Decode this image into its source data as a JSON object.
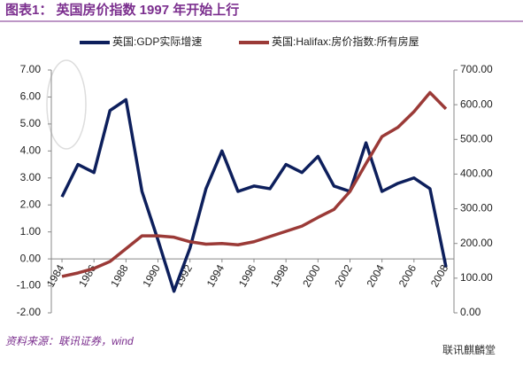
{
  "chart_data": {
    "type": "line",
    "title": "图表1：  英国房价指数 1997 年开始上行",
    "x": [
      1984,
      1985,
      1986,
      1987,
      1988,
      1989,
      1990,
      1991,
      1992,
      1993,
      1994,
      1995,
      1996,
      1997,
      1998,
      1999,
      2000,
      2001,
      2002,
      2003,
      2004,
      2005,
      2006,
      2007,
      2008
    ],
    "xlim": [
      1983.5,
      2008.5
    ],
    "xticks": [
      1984,
      1986,
      1988,
      1990,
      1992,
      1994,
      1996,
      1998,
      2000,
      2002,
      2004,
      2006,
      2008
    ],
    "ylim": [
      -2,
      7
    ],
    "yticks": [
      {
        "value": -2,
        "label": "-2.00"
      },
      {
        "value": -1,
        "label": "-1.00"
      },
      {
        "value": 0,
        "label": "0.00"
      },
      {
        "value": 1,
        "label": "1.00"
      },
      {
        "value": 2,
        "label": "2.00"
      },
      {
        "value": 3,
        "label": "3.00"
      },
      {
        "value": 4,
        "label": "4.00"
      },
      {
        "value": 5,
        "label": "5.00"
      },
      {
        "value": 6,
        "label": "6.00"
      },
      {
        "value": 7,
        "label": "7.00"
      }
    ],
    "y2lim": [
      0,
      700
    ],
    "y2ticks": [
      {
        "value": 0,
        "label": "0.00"
      },
      {
        "value": 100,
        "label": "100.00"
      },
      {
        "value": 200,
        "label": "200.00"
      },
      {
        "value": 300,
        "label": "300.00"
      },
      {
        "value": 400,
        "label": "400.00"
      },
      {
        "value": 500,
        "label": "500.00"
      },
      {
        "value": 600,
        "label": "600.00"
      },
      {
        "value": 700,
        "label": "700.00"
      }
    ],
    "series": [
      {
        "name": "英国:GDP实际增速",
        "color": "#0d1f5c",
        "values": [
          2.3,
          3.5,
          3.2,
          5.5,
          5.9,
          2.5,
          0.7,
          -1.2,
          0.4,
          2.6,
          4.0,
          2.5,
          2.7,
          2.6,
          3.5,
          3.2,
          3.8,
          2.7,
          2.5,
          4.3,
          2.5,
          2.8,
          3.0,
          2.6,
          -0.3
        ]
      },
      {
        "name": "英国:Halifax:房价指数:所有房屋",
        "color": "#9b3a37",
        "axis": "y2",
        "values": [
          105,
          115,
          128,
          148,
          185,
          222,
          222,
          218,
          205,
          198,
          200,
          196,
          205,
          220,
          235,
          250,
          275,
          298,
          350,
          430,
          508,
          535,
          580,
          635,
          588
        ]
      }
    ],
    "source": "资料来源：联讯证券，wind",
    "watermark": "联讯麒麟堂"
  }
}
